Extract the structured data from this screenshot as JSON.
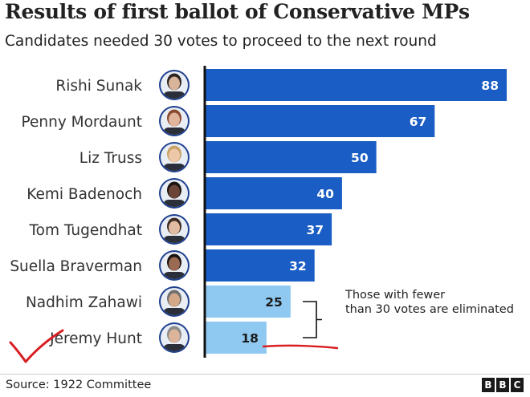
{
  "header": {
    "title": "Results of first ballot of Conservative MPs",
    "subtitle": "Candidates needed 30 votes to proceed to the next round"
  },
  "colors": {
    "proceed": "#1a5dc4",
    "eliminated": "#8fc9f2",
    "annotation_mark": "#d81e22"
  },
  "chart_data": {
    "type": "bar",
    "orientation": "horizontal",
    "title": "Results of first ballot of Conservative MPs",
    "subtitle": "Candidates needed 30 votes to proceed to the next round",
    "categories": [
      "Rishi Sunak",
      "Penny Mordaunt",
      "Liz Truss",
      "Kemi Badenoch",
      "Tom Tugendhat",
      "Suella Braverman",
      "Nadhim Zahawi",
      "Jeremy Hunt"
    ],
    "values": [
      88,
      67,
      50,
      40,
      37,
      32,
      25,
      18
    ],
    "threshold": 30,
    "xlim": [
      0,
      88
    ],
    "grid": false,
    "annotation": "Those with fewer than 30 votes are eliminated"
  },
  "footer": {
    "source": "Source: 1922 Committee",
    "logo_letters": [
      "B",
      "B",
      "C"
    ]
  }
}
